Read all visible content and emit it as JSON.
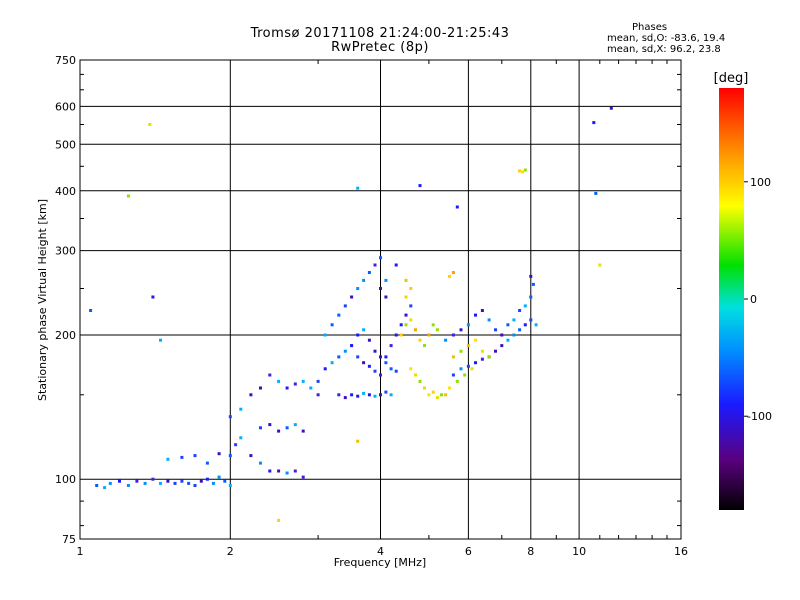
{
  "header": {
    "title_line1": "Tromsø 20171108 21:24:00-21:25:43",
    "title_line2": "RwPretec (8p)"
  },
  "phase_legend": {
    "heading": "Phases",
    "line_o": "mean, sd,O: -83.6, 19.4",
    "line_x": "mean, sd,X:  96.2, 23.8"
  },
  "colorbar": {
    "unit": "[deg]",
    "ticks": [
      100,
      0,
      -100
    ],
    "range": [
      -180,
      180
    ],
    "colormap": "rainbow (black-purple-blue-cyan-green-yellow-orange-red)"
  },
  "chart_data": {
    "type": "scatter",
    "title": "Tromsø 20171108 21:24:00-21:25:43",
    "subtitle": "RwPretec (8p)",
    "xlabel": "Frequency [MHz]",
    "ylabel": "Stationary phase Virtual Height [km]",
    "xscale": "log",
    "yscale": "log",
    "xlim": [
      1,
      16
    ],
    "ylim": [
      75,
      750
    ],
    "xticks": [
      1,
      2,
      4,
      6,
      8,
      10,
      16
    ],
    "yticks": [
      75,
      100,
      200,
      300,
      400,
      500,
      600,
      750
    ],
    "grid": true,
    "color_variable": "phase [deg]",
    "series": [
      {
        "name": "O",
        "phase_mean": -83.6,
        "phase_sd": 19.4,
        "points": [
          [
            1.08,
            97
          ],
          [
            1.12,
            96
          ],
          [
            1.15,
            98
          ],
          [
            1.2,
            99
          ],
          [
            1.25,
            97
          ],
          [
            1.3,
            99
          ],
          [
            1.35,
            98
          ],
          [
            1.4,
            100
          ],
          [
            1.45,
            98
          ],
          [
            1.5,
            99
          ],
          [
            1.55,
            98
          ],
          [
            1.6,
            99
          ],
          [
            1.65,
            98
          ],
          [
            1.7,
            97
          ],
          [
            1.75,
            99
          ],
          [
            1.8,
            100
          ],
          [
            1.85,
            98
          ],
          [
            1.9,
            101
          ],
          [
            1.95,
            99
          ],
          [
            2.0,
            97
          ],
          [
            1.5,
            110
          ],
          [
            1.6,
            111
          ],
          [
            1.7,
            112
          ],
          [
            1.8,
            108
          ],
          [
            1.9,
            113
          ],
          [
            2.0,
            112
          ],
          [
            2.05,
            118
          ],
          [
            2.1,
            122
          ],
          [
            2.0,
            135
          ],
          [
            2.1,
            140
          ],
          [
            2.2,
            112
          ],
          [
            2.3,
            108
          ],
          [
            2.4,
            104
          ],
          [
            2.5,
            104
          ],
          [
            2.6,
            103
          ],
          [
            2.7,
            104
          ],
          [
            2.8,
            101
          ],
          [
            2.2,
            150
          ],
          [
            2.3,
            155
          ],
          [
            2.4,
            165
          ],
          [
            2.5,
            160
          ],
          [
            2.6,
            155
          ],
          [
            2.7,
            158
          ],
          [
            2.8,
            160
          ],
          [
            2.9,
            155
          ],
          [
            3.0,
            150
          ],
          [
            2.3,
            128
          ],
          [
            2.4,
            130
          ],
          [
            2.5,
            126
          ],
          [
            2.6,
            128
          ],
          [
            2.7,
            130
          ],
          [
            2.8,
            126
          ],
          [
            3.0,
            160
          ],
          [
            3.1,
            170
          ],
          [
            3.2,
            175
          ],
          [
            3.3,
            180
          ],
          [
            3.4,
            185
          ],
          [
            3.5,
            190
          ],
          [
            3.6,
            180
          ],
          [
            3.7,
            175
          ],
          [
            3.8,
            172
          ],
          [
            3.9,
            168
          ],
          [
            4.0,
            165
          ],
          [
            3.1,
            200
          ],
          [
            3.2,
            210
          ],
          [
            3.3,
            220
          ],
          [
            3.4,
            230
          ],
          [
            3.5,
            240
          ],
          [
            3.6,
            250
          ],
          [
            3.7,
            260
          ],
          [
            3.8,
            270
          ],
          [
            3.9,
            280
          ],
          [
            4.0,
            290
          ],
          [
            3.3,
            150
          ],
          [
            3.4,
            148
          ],
          [
            3.5,
            150
          ],
          [
            3.6,
            149
          ],
          [
            3.7,
            151
          ],
          [
            3.8,
            150
          ],
          [
            3.9,
            149
          ],
          [
            4.0,
            150
          ],
          [
            4.1,
            152
          ],
          [
            4.2,
            150
          ],
          [
            4.1,
            180
          ],
          [
            4.2,
            190
          ],
          [
            4.3,
            200
          ],
          [
            4.4,
            210
          ],
          [
            4.5,
            220
          ],
          [
            4.6,
            230
          ],
          [
            4.1,
            240
          ],
          [
            4.0,
            250
          ],
          [
            4.1,
            260
          ],
          [
            4.3,
            280
          ],
          [
            3.5,
            190
          ],
          [
            3.6,
            200
          ],
          [
            3.7,
            205
          ],
          [
            3.8,
            195
          ],
          [
            3.9,
            185
          ],
          [
            4.0,
            180
          ],
          [
            4.1,
            175
          ],
          [
            4.2,
            170
          ],
          [
            4.3,
            168
          ],
          [
            5.6,
            165
          ],
          [
            5.8,
            170
          ],
          [
            6.0,
            172
          ],
          [
            6.2,
            175
          ],
          [
            6.4,
            178
          ],
          [
            6.6,
            180
          ],
          [
            6.8,
            185
          ],
          [
            7.0,
            190
          ],
          [
            7.2,
            195
          ],
          [
            7.4,
            200
          ],
          [
            7.6,
            205
          ],
          [
            7.8,
            210
          ],
          [
            8.0,
            215
          ],
          [
            8.2,
            210
          ],
          [
            5.4,
            195
          ],
          [
            5.6,
            200
          ],
          [
            5.8,
            205
          ],
          [
            6.0,
            210
          ],
          [
            6.2,
            220
          ],
          [
            6.4,
            225
          ],
          [
            6.6,
            215
          ],
          [
            6.8,
            205
          ],
          [
            7.0,
            200
          ],
          [
            7.2,
            210
          ],
          [
            7.4,
            215
          ],
          [
            7.6,
            225
          ],
          [
            7.8,
            230
          ],
          [
            8.0,
            240
          ],
          [
            8.1,
            255
          ],
          [
            8.0,
            265
          ],
          [
            3.6,
            405
          ],
          [
            5.7,
            370
          ],
          [
            4.8,
            410
          ],
          [
            10.7,
            555
          ],
          [
            11.6,
            595
          ],
          [
            10.8,
            395
          ],
          [
            1.05,
            225
          ],
          [
            1.4,
            240
          ],
          [
            1.45,
            195
          ]
        ]
      },
      {
        "name": "X",
        "phase_mean": 96.2,
        "phase_sd": 23.8,
        "points": [
          [
            4.4,
            200
          ],
          [
            4.5,
            210
          ],
          [
            4.6,
            215
          ],
          [
            4.7,
            205
          ],
          [
            4.8,
            195
          ],
          [
            4.9,
            190
          ],
          [
            5.0,
            200
          ],
          [
            5.1,
            210
          ],
          [
            5.2,
            205
          ],
          [
            4.6,
            170
          ],
          [
            4.7,
            165
          ],
          [
            4.8,
            160
          ],
          [
            4.9,
            155
          ],
          [
            5.0,
            150
          ],
          [
            5.1,
            152
          ],
          [
            5.2,
            148
          ],
          [
            5.3,
            150
          ],
          [
            5.4,
            150
          ],
          [
            5.5,
            155
          ],
          [
            5.6,
            180
          ],
          [
            5.8,
            185
          ],
          [
            6.0,
            190
          ],
          [
            6.2,
            195
          ],
          [
            6.4,
            185
          ],
          [
            6.6,
            180
          ],
          [
            5.7,
            160
          ],
          [
            5.9,
            165
          ],
          [
            6.1,
            170
          ],
          [
            4.5,
            240
          ],
          [
            4.6,
            250
          ],
          [
            4.5,
            260
          ],
          [
            5.5,
            265
          ],
          [
            5.6,
            270
          ],
          [
            7.6,
            440
          ],
          [
            7.7,
            438
          ],
          [
            7.8,
            442
          ],
          [
            1.38,
            550
          ],
          [
            1.25,
            390
          ],
          [
            11.0,
            280
          ],
          [
            2.5,
            82
          ],
          [
            3.6,
            120
          ]
        ]
      }
    ]
  }
}
